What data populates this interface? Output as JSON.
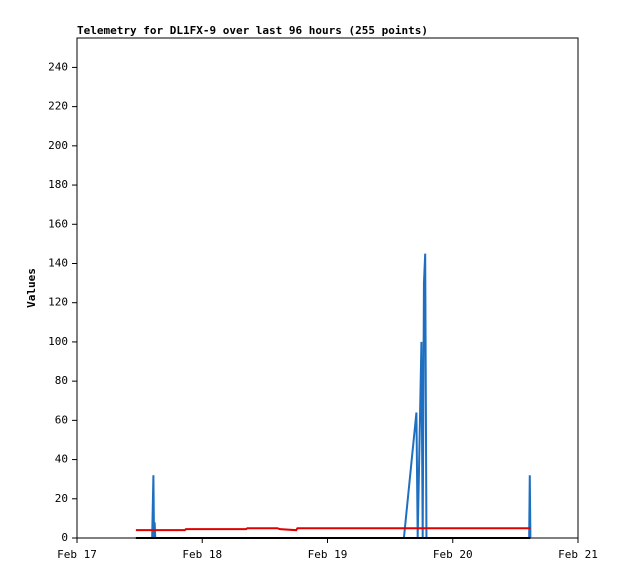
{
  "chart_data": {
    "type": "line",
    "title": "Telemetry for DL1FX-9 over last 96 hours (255 points)",
    "y_label": "Values",
    "xlim": [
      0,
      4
    ],
    "xticks": [
      {
        "value": 0,
        "label": "Feb 17"
      },
      {
        "value": 1,
        "label": "Feb 18"
      },
      {
        "value": 2,
        "label": "Feb 19"
      },
      {
        "value": 3,
        "label": "Feb 20"
      },
      {
        "value": 4,
        "label": "Feb 21"
      }
    ],
    "ylim": [
      0,
      255
    ],
    "yticks": [
      0,
      20,
      40,
      60,
      80,
      100,
      120,
      140,
      160,
      180,
      200,
      220,
      240
    ],
    "series": [
      {
        "color": "#1f6fc0",
        "x": [
          0.47,
          0.6,
          0.61,
          0.615,
          0.62,
          0.625,
          2.61,
          2.71,
          2.72,
          2.75,
          2.76,
          2.77,
          2.78,
          2.79,
          3.61,
          3.615,
          3.62
        ],
        "values": [
          0,
          0,
          32,
          0,
          8,
          0,
          0,
          64,
          0,
          100,
          0,
          130,
          145,
          0,
          0,
          32,
          0
        ]
      },
      {
        "color": "#e00000",
        "x": [
          0.47,
          0.86,
          0.87,
          1.35,
          1.36,
          1.6,
          1.62,
          1.75,
          1.76,
          3.62
        ],
        "values": [
          4,
          4,
          4.5,
          4.5,
          5,
          5,
          4.5,
          4,
          5,
          5
        ]
      },
      {
        "color": "#000000",
        "x": [
          0.47,
          3.62
        ],
        "values": [
          0,
          0
        ]
      }
    ]
  }
}
